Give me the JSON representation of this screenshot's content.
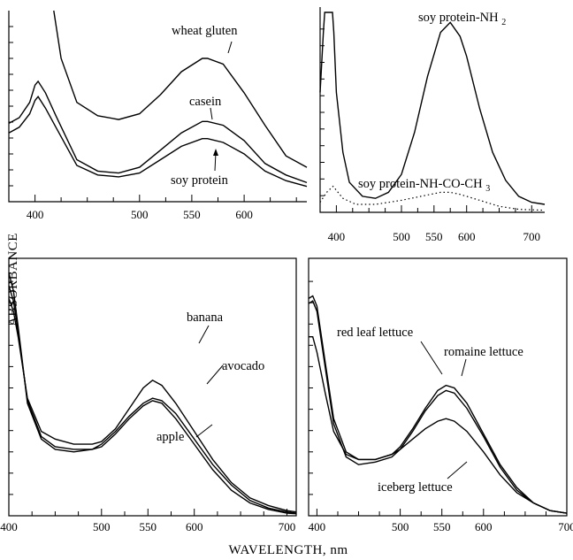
{
  "figure": {
    "ylabel": "ABSORBANCE",
    "xlabel": "WAVELENGTH, nm"
  },
  "chart_data": [
    {
      "type": "line",
      "xlim": [
        375,
        660
      ],
      "ylim": [
        0,
        1.0
      ],
      "x_ticks": [
        400,
        500,
        550,
        600
      ],
      "grid": false,
      "series": [
        {
          "name": "wheat gluten",
          "x": [
            418,
            425,
            440,
            460,
            480,
            500,
            520,
            540,
            560,
            565,
            580,
            600,
            620,
            640,
            660
          ],
          "y": [
            1.0,
            0.75,
            0.52,
            0.45,
            0.43,
            0.46,
            0.56,
            0.68,
            0.75,
            0.75,
            0.72,
            0.57,
            0.4,
            0.24,
            0.18
          ]
        },
        {
          "name": "casein",
          "x": [
            375,
            385,
            395,
            400,
            403,
            410,
            420,
            440,
            460,
            480,
            500,
            520,
            540,
            560,
            565,
            580,
            600,
            620,
            640,
            660
          ],
          "y": [
            0.41,
            0.44,
            0.52,
            0.61,
            0.63,
            0.57,
            0.45,
            0.22,
            0.16,
            0.15,
            0.18,
            0.27,
            0.36,
            0.42,
            0.42,
            0.4,
            0.32,
            0.2,
            0.14,
            0.1
          ]
        },
        {
          "name": "soy protein",
          "x": [
            375,
            385,
            395,
            400,
            403,
            410,
            420,
            440,
            460,
            480,
            500,
            520,
            540,
            560,
            565,
            580,
            600,
            620,
            640,
            660
          ],
          "y": [
            0.36,
            0.39,
            0.46,
            0.53,
            0.55,
            0.49,
            0.39,
            0.19,
            0.14,
            0.13,
            0.15,
            0.22,
            0.29,
            0.33,
            0.33,
            0.31,
            0.25,
            0.16,
            0.11,
            0.08
          ]
        }
      ],
      "annotations": [
        "wheat gluten",
        "casein",
        "soy protein"
      ]
    },
    {
      "type": "line",
      "xlim": [
        375,
        720
      ],
      "ylim": [
        0,
        1.0
      ],
      "x_ticks": [
        400,
        500,
        550,
        600,
        700
      ],
      "grid": false,
      "series": [
        {
          "name": "soy protein-NH",
          "x": [
            375,
            380,
            382,
            394,
            396,
            400,
            410,
            420,
            440,
            460,
            480,
            500,
            520,
            540,
            560,
            575,
            590,
            600,
            620,
            640,
            660,
            680,
            700,
            720
          ],
          "y": [
            0.6,
            0.9,
            1.0,
            1.0,
            0.9,
            0.6,
            0.3,
            0.15,
            0.08,
            0.07,
            0.1,
            0.19,
            0.4,
            0.68,
            0.9,
            0.95,
            0.88,
            0.78,
            0.52,
            0.3,
            0.16,
            0.08,
            0.05,
            0.04
          ]
        },
        {
          "name": "soy protein-NH-CO-CH",
          "x": [
            375,
            385,
            395,
            400,
            410,
            430,
            460,
            500,
            530,
            560,
            575,
            590,
            620,
            650,
            680,
            720
          ],
          "y": [
            0.05,
            0.1,
            0.13,
            0.11,
            0.07,
            0.04,
            0.04,
            0.06,
            0.08,
            0.1,
            0.1,
            0.09,
            0.06,
            0.03,
            0.015,
            0.01
          ]
        }
      ],
      "annotations": [
        "soy protein-NH",
        "2",
        "soy protein-NH-CO-CH",
        "3"
      ]
    },
    {
      "type": "line",
      "xlim": [
        400,
        710
      ],
      "ylim": [
        0,
        1.0
      ],
      "x_ticks": [
        400,
        500,
        550,
        600,
        700
      ],
      "grid": false,
      "series": [
        {
          "name": "banana",
          "x": [
            400,
            405,
            410,
            420,
            435,
            450,
            470,
            490,
            500,
            515,
            530,
            545,
            555,
            565,
            580,
            600,
            620,
            640,
            660,
            680,
            700,
            710
          ],
          "y": [
            0.85,
            0.8,
            0.7,
            0.46,
            0.33,
            0.3,
            0.28,
            0.28,
            0.29,
            0.34,
            0.42,
            0.5,
            0.53,
            0.51,
            0.44,
            0.33,
            0.22,
            0.13,
            0.07,
            0.04,
            0.02,
            0.015
          ]
        },
        {
          "name": "avocado",
          "x": [
            400,
            405,
            410,
            420,
            435,
            450,
            470,
            490,
            500,
            515,
            530,
            545,
            555,
            565,
            580,
            600,
            620,
            640,
            660,
            680,
            700,
            710
          ],
          "y": [
            0.95,
            0.88,
            0.74,
            0.44,
            0.3,
            0.26,
            0.25,
            0.26,
            0.28,
            0.33,
            0.39,
            0.44,
            0.46,
            0.45,
            0.4,
            0.3,
            0.2,
            0.12,
            0.06,
            0.03,
            0.015,
            0.01
          ]
        },
        {
          "name": "apple",
          "x": [
            400,
            405,
            410,
            420,
            435,
            450,
            470,
            490,
            500,
            515,
            530,
            545,
            555,
            565,
            580,
            600,
            620,
            640,
            660,
            680,
            700,
            710
          ],
          "y": [
            0.9,
            0.84,
            0.72,
            0.45,
            0.31,
            0.27,
            0.26,
            0.26,
            0.27,
            0.32,
            0.38,
            0.43,
            0.45,
            0.44,
            0.38,
            0.28,
            0.18,
            0.1,
            0.05,
            0.025,
            0.01,
            0.008
          ]
        }
      ],
      "annotations": [
        "banana",
        "avocado",
        "apple"
      ]
    },
    {
      "type": "line",
      "xlim": [
        390,
        700
      ],
      "ylim": [
        0,
        1.0
      ],
      "x_ticks": [
        400,
        500,
        550,
        600,
        700
      ],
      "grid": false,
      "series": [
        {
          "name": "red leaf lettuce",
          "x": [
            390,
            395,
            400,
            410,
            420,
            435,
            450,
            470,
            490,
            500,
            515,
            530,
            545,
            555,
            565,
            580,
            600,
            620,
            640,
            660,
            680,
            700
          ],
          "y": [
            0.85,
            0.86,
            0.82,
            0.6,
            0.38,
            0.25,
            0.22,
            0.22,
            0.24,
            0.27,
            0.34,
            0.42,
            0.49,
            0.51,
            0.5,
            0.44,
            0.32,
            0.2,
            0.11,
            0.05,
            0.02,
            0.01
          ]
        },
        {
          "name": "romaine lettuce",
          "x": [
            390,
            395,
            400,
            410,
            420,
            435,
            450,
            470,
            490,
            500,
            515,
            530,
            545,
            555,
            565,
            580,
            600,
            620,
            640,
            660,
            680,
            700
          ],
          "y": [
            0.83,
            0.84,
            0.8,
            0.58,
            0.36,
            0.23,
            0.2,
            0.21,
            0.23,
            0.26,
            0.33,
            0.41,
            0.47,
            0.49,
            0.48,
            0.42,
            0.31,
            0.19,
            0.1,
            0.05,
            0.02,
            0.01
          ]
        },
        {
          "name": "iceberg lettuce",
          "x": [
            390,
            395,
            400,
            410,
            420,
            435,
            450,
            470,
            490,
            500,
            515,
            530,
            545,
            555,
            565,
            580,
            600,
            620,
            640,
            660,
            680,
            700
          ],
          "y": [
            0.7,
            0.7,
            0.64,
            0.48,
            0.33,
            0.24,
            0.22,
            0.22,
            0.24,
            0.26,
            0.3,
            0.34,
            0.37,
            0.38,
            0.37,
            0.33,
            0.25,
            0.16,
            0.09,
            0.05,
            0.02,
            0.01
          ]
        }
      ],
      "annotations": [
        "red leaf lettuce",
        "romaine lettuce",
        "iceberg lettuce"
      ]
    }
  ]
}
